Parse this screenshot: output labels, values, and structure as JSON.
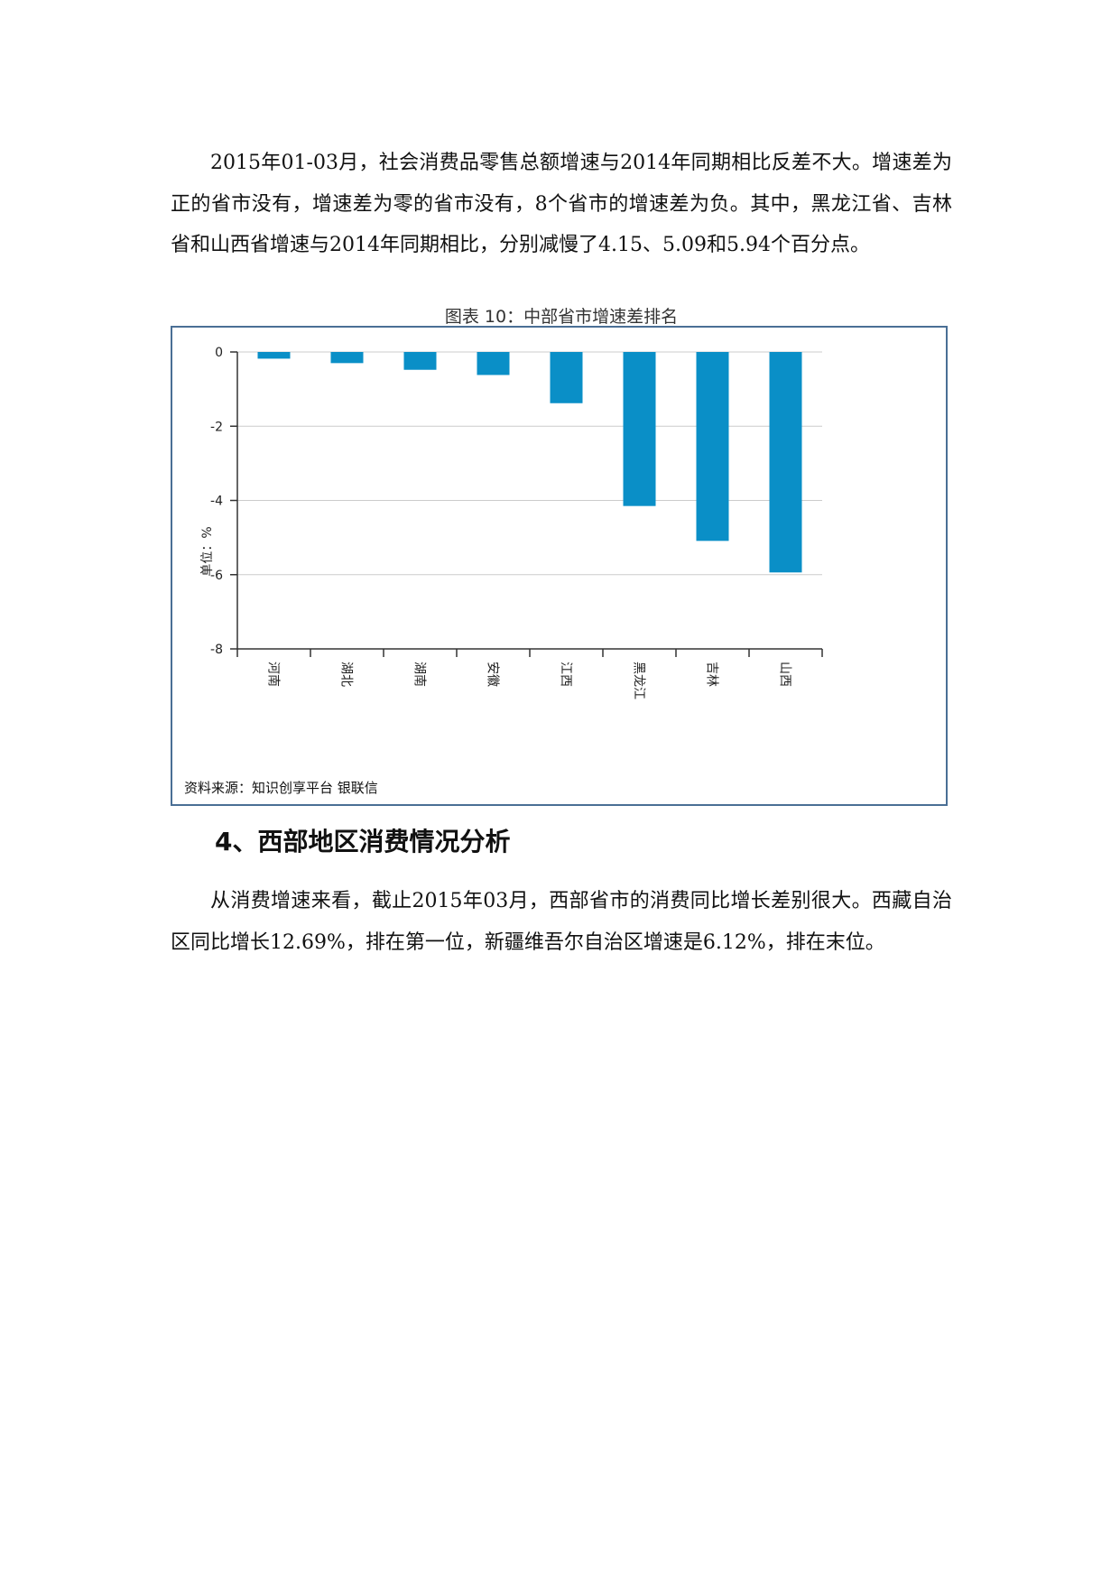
{
  "paragraph1": "2015年01-03月，社会消费品零售总额增速与2014年同期相比反差不大。增速差为正的省市没有，增速差为零的省市没有，8个省市的增速差为负。其中，黑龙江省、吉林省和山西省增速与2014年同期相比，分别减慢了4.15、5.09和5.94个百分点。",
  "caption": "图表 10：中部省市增速差排名",
  "chart_data": {
    "type": "bar",
    "categories": [
      "河南",
      "湖北",
      "湖南",
      "安徽",
      "江西",
      "黑龙江",
      "吉林",
      "山西"
    ],
    "values": [
      -0.18,
      -0.3,
      -0.48,
      -0.62,
      -1.38,
      -4.15,
      -5.09,
      -5.94
    ],
    "ylabel": "单位：%",
    "ylim": [
      -8,
      0
    ],
    "yticks": [
      "0",
      "-2",
      "-4",
      "-6",
      "-8"
    ],
    "ytick_values": [
      0,
      -2,
      -4,
      -6,
      -8
    ],
    "grid": true,
    "bar_color": "#0a8fc7",
    "source": "资料来源：知识创享平台 银联信"
  },
  "heading": "4、西部地区消费情况分析",
  "paragraph2": "从消费增速来看，截止2015年03月，西部省市的消费同比增长差别很大。西藏自治区同比增长12.69%，排在第一位，新疆维吾尔自治区增速是6.12%，排在末位。"
}
